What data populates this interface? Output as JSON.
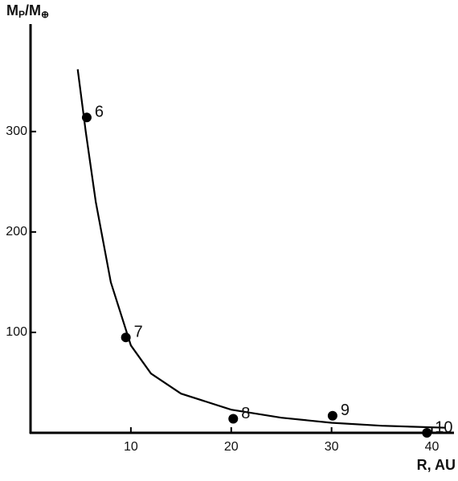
{
  "chart_data": {
    "type": "scatter",
    "xlabel": "R, AU",
    "ylabel": [
      "M",
      "P",
      "/M",
      "⊕"
    ],
    "xlim": [
      0,
      42.2
    ],
    "ylim": [
      0,
      407
    ],
    "xticks": [
      10,
      20,
      30,
      40
    ],
    "yticks": [
      100,
      200,
      300
    ],
    "color": "#000000",
    "points": {
      "x": [
        5.6,
        9.5,
        20.2,
        30.1,
        39.5
      ],
      "y": [
        314,
        95,
        14,
        17,
        0
      ],
      "labels": [
        "6",
        "7",
        "8",
        "9",
        "10"
      ]
    },
    "curve": {
      "x": [
        4.7,
        5.5,
        6.5,
        8,
        10,
        12,
        15,
        20,
        25,
        30,
        35,
        41.4
      ],
      "y": [
        362,
        300,
        230,
        150,
        87,
        59,
        39,
        23,
        15,
        10,
        7,
        5
      ]
    }
  }
}
